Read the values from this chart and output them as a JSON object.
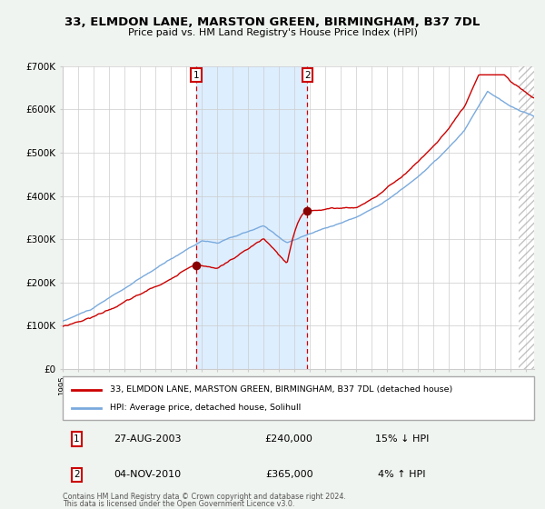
{
  "title": "33, ELMDON LANE, MARSTON GREEN, BIRMINGHAM, B37 7DL",
  "subtitle": "Price paid vs. HM Land Registry's House Price Index (HPI)",
  "ylim": [
    0,
    700000
  ],
  "yticks": [
    0,
    100000,
    200000,
    300000,
    400000,
    500000,
    600000,
    700000
  ],
  "ytick_labels": [
    "£0",
    "£100K",
    "£200K",
    "£300K",
    "£400K",
    "£500K",
    "£600K",
    "£700K"
  ],
  "hpi_color": "#7aaadd",
  "price_color": "#cc0000",
  "marker_color": "#880000",
  "sale1_year": 2003.646,
  "sale1_price": 240000,
  "sale1_date_label": "27-AUG-2003",
  "sale1_pct": "15%",
  "sale1_dir": "↓",
  "sale2_year": 2010.833,
  "sale2_price": 365000,
  "sale2_date_label": "04-NOV-2010",
  "sale2_pct": "4%",
  "sale2_dir": "↑",
  "legend_label1": "33, ELMDON LANE, MARSTON GREEN, BIRMINGHAM, B37 7DL (detached house)",
  "legend_label2": "HPI: Average price, detached house, Solihull",
  "footnote1": "Contains HM Land Registry data © Crown copyright and database right 2024.",
  "footnote2": "This data is licensed under the Open Government Licence v3.0.",
  "bg_color": "#f0f4f0",
  "plot_bg": "#ffffff",
  "shade_color": "#ddeeff",
  "grid_color": "#cccccc",
  "xlim_start": 1995.0,
  "xlim_end": 2025.5,
  "hatch_start": 2024.5
}
